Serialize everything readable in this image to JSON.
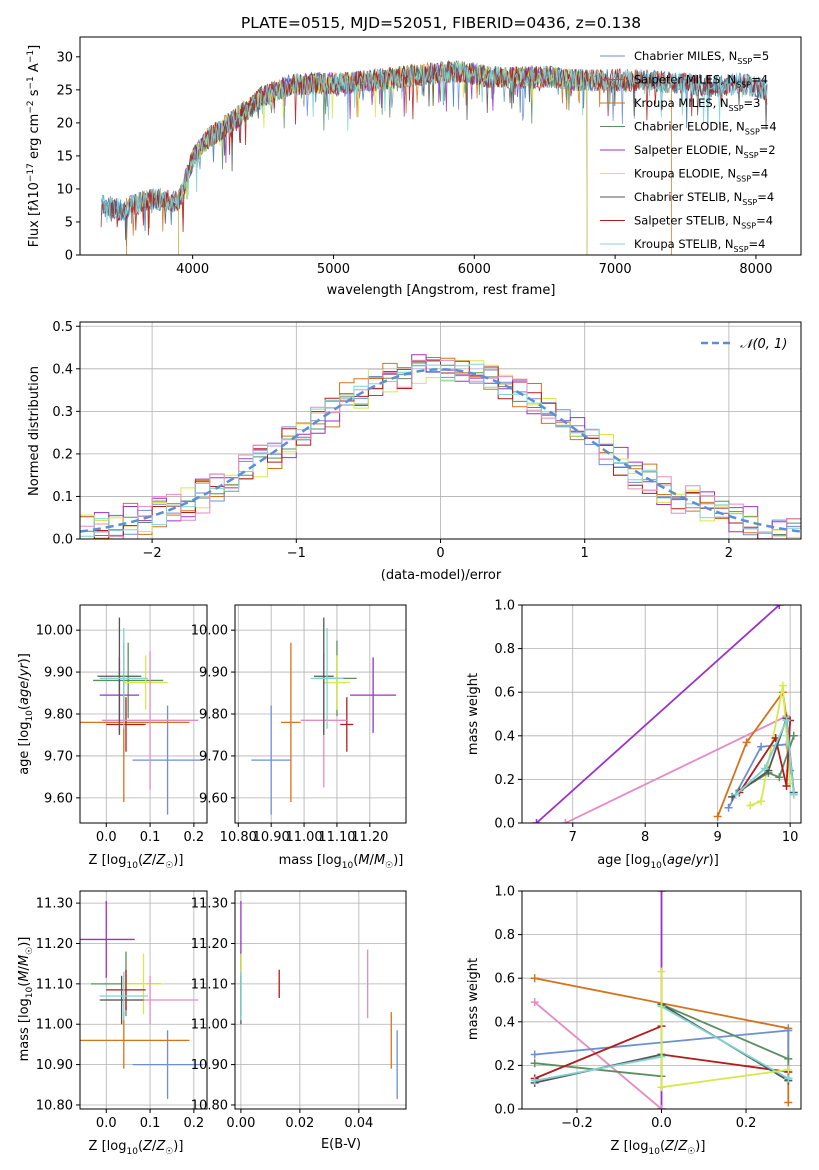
{
  "chart_data": [
    {
      "id": "spectrum",
      "type": "line",
      "title": "PLATE=0515, MJD=52051, FIBERID=0436, z=0.138",
      "xlabel": "wavelength [Angstrom, rest frame]",
      "ylabel": "Flux [f_λ 10⁻¹⁷ erg cm⁻² s⁻¹ A⁻¹]",
      "xlim": [
        3200,
        8320
      ],
      "ylim": [
        0,
        33
      ],
      "xticks": [
        4000,
        5000,
        6000,
        7000,
        8000
      ],
      "yticks": [
        0,
        5,
        10,
        15,
        20,
        25,
        30
      ],
      "legend_position": "top-right",
      "continuum": {
        "x": [
          3350,
          3500,
          3700,
          3900,
          4000,
          4100,
          4300,
          4500,
          4700,
          4900,
          5100,
          5300,
          5500,
          5700,
          5900,
          6100,
          6300,
          6500,
          6700,
          6900,
          7100,
          7300,
          7500,
          7700,
          7900,
          8080
        ],
        "y": [
          7.5,
          6.8,
          8.5,
          8.0,
          14.5,
          17.5,
          20.5,
          24.0,
          25.8,
          26.0,
          26.0,
          26.5,
          27.0,
          27.5,
          27.8,
          27.0,
          26.8,
          27.0,
          26.5,
          26.5,
          26.5,
          26.3,
          26.0,
          25.5,
          26.0,
          25.0
        ]
      },
      "series": [
        {
          "name": "Chabrier MILES, N_SSP=5",
          "color": "#6b8fd6",
          "x_range": [
            3350,
            8080
          ]
        },
        {
          "name": "Salpeter MILES, N_SSP=4",
          "color": "#3a7fb8",
          "x_range": [
            3350,
            8080
          ]
        },
        {
          "name": "Kroupa MILES, N_SSP=3",
          "color": "#d4731c",
          "x_range": [
            3530,
            7400
          ]
        },
        {
          "name": "Chabrier ELODIE, N_SSP=4",
          "color": "#5b8f62",
          "x_range": [
            3900,
            6800
          ]
        },
        {
          "name": "Salpeter ELODIE, N_SSP=2",
          "color": "#9932cc",
          "x_range": [
            3900,
            6800
          ]
        },
        {
          "name": "Kroupa ELODIE, N_SSP=4",
          "color": "#d8e84a",
          "x_range": [
            3900,
            6800
          ]
        },
        {
          "name": "Chabrier STELIB, N_SSP=4",
          "color": "#555555",
          "x_range": [
            3350,
            8080
          ]
        },
        {
          "name": "Salpeter STELIB, N_SSP=4",
          "color": "#b21c1c",
          "x_range": [
            3350,
            8080
          ]
        },
        {
          "name": "Kroupa STELIB, N_SSP=4",
          "color": "#7fd4d4",
          "x_range": [
            3350,
            8080
          ]
        }
      ],
      "legend": [
        {
          "text": "Chabrier MILES, N",
          "sub": "SSP",
          "suffix": "=5",
          "color": "#6b8fd6"
        },
        {
          "text": "Salpeter MILES, N",
          "sub": "SSP",
          "suffix": "=4",
          "color": "#3a7fb8"
        },
        {
          "text": "Kroupa MILES, N",
          "sub": "SSP",
          "suffix": "=3",
          "color": "#d4731c"
        },
        {
          "text": "Chabrier ELODIE, N",
          "sub": "SSP",
          "suffix": "=4",
          "color": "#5b8f62"
        },
        {
          "text": "Salpeter ELODIE, N",
          "sub": "SSP",
          "suffix": "=2",
          "color": "#9932cc"
        },
        {
          "text": "Kroupa ELODIE, N",
          "sub": "SSP",
          "suffix": "=4",
          "color": "#d8e84a"
        },
        {
          "text": "Chabrier STELIB, N",
          "sub": "SSP",
          "suffix": "=4",
          "color": "#555555"
        },
        {
          "text": "Salpeter STELIB, N",
          "sub": "SSP",
          "suffix": "=4",
          "color": "#b21c1c"
        },
        {
          "text": "Kroupa STELIB, N",
          "sub": "SSP",
          "suffix": "=4",
          "color": "#7fd4d4"
        }
      ]
    },
    {
      "id": "residuals",
      "type": "line",
      "xlabel": "(data-model)/error",
      "ylabel": "Normed distribution",
      "xlim": [
        -2.5,
        2.5
      ],
      "ylim": [
        0,
        0.51
      ],
      "xticks": [
        -2,
        -1,
        0,
        1,
        2
      ],
      "yticks": [
        0.0,
        0.1,
        0.2,
        0.3,
        0.4,
        0.5
      ],
      "grid": true,
      "legend_position": "top-right",
      "reference_curve": {
        "name": "𝒩(0, 1)",
        "color": "#5a8fd8",
        "style": "dashed"
      },
      "bin_width": 0.1,
      "series": [
        {
          "color": "#6b8fd6",
          "jitter": 0.035
        },
        {
          "color": "#d4731c",
          "jitter": 0.045
        },
        {
          "color": "#5b8f62",
          "jitter": 0.03
        },
        {
          "color": "#9932cc",
          "jitter": 0.04
        },
        {
          "color": "#d8e84a",
          "jitter": 0.04
        },
        {
          "color": "#b21c1c",
          "jitter": 0.035
        },
        {
          "color": "#e68ac4",
          "jitter": 0.045
        },
        {
          "color": "#7fd4d4",
          "jitter": 0.03
        }
      ]
    },
    {
      "id": "z-age",
      "type": "scatter",
      "xlabel": "Z [log₁₀(Z/Z☉)]",
      "ylabel": "age  [log₁₀(age/yr)]",
      "xlim": [
        -0.06,
        0.23
      ],
      "ylim": [
        9.54,
        10.06
      ],
      "xticks": [
        0.0,
        0.1,
        0.2
      ],
      "yticks": [
        9.6,
        9.7,
        9.8,
        9.9,
        10.0
      ],
      "grid": true,
      "points": [
        {
          "x": 0.14,
          "y": 9.69,
          "xerr": 0.08,
          "yerr": 0.13,
          "color": "#6b8fd6"
        },
        {
          "x": 0.04,
          "y": 9.78,
          "xerr": 0.15,
          "yerr": 0.19,
          "color": "#d4731c"
        },
        {
          "x": 0.05,
          "y": 9.88,
          "xerr": 0.08,
          "yerr": 0.09,
          "color": "#5b8f62"
        },
        {
          "x": 0.03,
          "y": 9.845,
          "xerr": 0.045,
          "yerr": 0.09,
          "color": "#9932cc"
        },
        {
          "x": 0.09,
          "y": 9.875,
          "xerr": 0.05,
          "yerr": 0.065,
          "color": "#d8e84a"
        },
        {
          "x": 0.045,
          "y": 9.775,
          "xerr": 0.045,
          "yerr": 0.065,
          "color": "#b21c1c"
        },
        {
          "x": 0.1,
          "y": 9.785,
          "xerr": 0.11,
          "yerr": 0.165,
          "color": "#e68ac4"
        },
        {
          "x": 0.03,
          "y": 9.89,
          "xerr": 0.05,
          "yerr": 0.14,
          "color": "#555555"
        },
        {
          "x": 0.04,
          "y": 9.885,
          "xerr": 0.055,
          "yerr": 0.12,
          "color": "#7fd4d4"
        }
      ]
    },
    {
      "id": "mass-age",
      "type": "scatter",
      "xlabel": "mass [log₁₀(M/M☉)]",
      "ylabel": "",
      "xlim": [
        10.79,
        11.31
      ],
      "ylim": [
        9.54,
        10.06
      ],
      "xticks": [
        10.8,
        10.9,
        11.0,
        11.1,
        11.2
      ],
      "yticks": [
        9.6,
        9.7,
        9.8,
        9.9,
        10.0
      ],
      "grid": true,
      "points": [
        {
          "x": 10.9,
          "y": 9.69,
          "xerr": 0.06,
          "yerr": 0.13,
          "color": "#6b8fd6"
        },
        {
          "x": 10.96,
          "y": 9.78,
          "xerr": 0.03,
          "yerr": 0.19,
          "color": "#d4731c"
        },
        {
          "x": 11.1,
          "y": 9.885,
          "xerr": 0.06,
          "yerr": 0.09,
          "color": "#5b8f62"
        },
        {
          "x": 11.21,
          "y": 9.845,
          "xerr": 0.07,
          "yerr": 0.09,
          "color": "#9932cc"
        },
        {
          "x": 11.1,
          "y": 9.875,
          "xerr": 0.04,
          "yerr": 0.065,
          "color": "#d8e84a"
        },
        {
          "x": 11.13,
          "y": 9.775,
          "xerr": 0.02,
          "yerr": 0.065,
          "color": "#b21c1c"
        },
        {
          "x": 11.06,
          "y": 9.785,
          "xerr": 0.07,
          "yerr": 0.16,
          "color": "#e68ac4"
        },
        {
          "x": 11.06,
          "y": 9.89,
          "xerr": 0.03,
          "yerr": 0.14,
          "color": "#555555"
        },
        {
          "x": 11.07,
          "y": 9.885,
          "xerr": 0.05,
          "yerr": 0.12,
          "color": "#7fd4d4"
        }
      ]
    },
    {
      "id": "age-weight",
      "type": "line",
      "xlabel": "age  [log₁₀(age/yr)]",
      "ylabel": "mass weight",
      "xlim": [
        6.3,
        10.15
      ],
      "ylim": [
        0,
        1.0
      ],
      "xticks": [
        7,
        8,
        9,
        10
      ],
      "yticks": [
        0.0,
        0.2,
        0.4,
        0.6,
        0.8,
        1.0
      ],
      "grid": true,
      "series": [
        {
          "color": "#9932cc",
          "points": [
            [
              6.5,
              0.0
            ],
            [
              9.85,
              1.0
            ]
          ]
        },
        {
          "color": "#e68ac4",
          "points": [
            [
              6.9,
              0.0
            ],
            [
              9.95,
              0.49
            ]
          ]
        },
        {
          "color": "#d4731c",
          "points": [
            [
              9.0,
              0.03
            ],
            [
              9.4,
              0.37
            ],
            [
              9.9,
              0.6
            ],
            [
              9.95,
              0.48
            ]
          ]
        },
        {
          "color": "#6b8fd6",
          "points": [
            [
              9.15,
              0.07
            ],
            [
              9.6,
              0.35
            ],
            [
              9.95,
              0.36
            ],
            [
              10.0,
              0.24
            ]
          ]
        },
        {
          "color": "#d8e84a",
          "points": [
            [
              9.45,
              0.08
            ],
            [
              9.6,
              0.1
            ],
            [
              9.9,
              0.63
            ],
            [
              10.0,
              0.18
            ]
          ]
        },
        {
          "color": "#5b8f62",
          "points": [
            [
              9.3,
              0.15
            ],
            [
              9.7,
              0.23
            ],
            [
              9.85,
              0.21
            ],
            [
              10.05,
              0.4
            ]
          ]
        },
        {
          "color": "#b21c1c",
          "points": [
            [
              9.3,
              0.14
            ],
            [
              9.8,
              0.39
            ],
            [
              9.95,
              0.17
            ],
            [
              10.0,
              0.47
            ]
          ]
        },
        {
          "color": "#555555",
          "points": [
            [
              9.2,
              0.12
            ],
            [
              9.7,
              0.24
            ],
            [
              9.95,
              0.48
            ],
            [
              10.05,
              0.14
            ]
          ]
        },
        {
          "color": "#7fd4d4",
          "points": [
            [
              9.25,
              0.13
            ],
            [
              9.65,
              0.25
            ],
            [
              9.95,
              0.47
            ],
            [
              10.05,
              0.13
            ]
          ]
        }
      ]
    },
    {
      "id": "z-mass",
      "type": "scatter",
      "xlabel": "Z [log₁₀(Z/Z☉)]",
      "ylabel": "mass [log₁₀(M/M☉)]",
      "xlim": [
        -0.06,
        0.23
      ],
      "ylim": [
        10.79,
        11.33
      ],
      "xticks": [
        0.0,
        0.1,
        0.2
      ],
      "yticks": [
        10.8,
        10.9,
        11.0,
        11.1,
        11.2,
        11.3
      ],
      "grid": true,
      "points": [
        {
          "x": 0.14,
          "y": 10.9,
          "xerr": 0.08,
          "yerr": 0.085,
          "color": "#6b8fd6"
        },
        {
          "x": 0.04,
          "y": 10.96,
          "xerr": 0.15,
          "yerr": 0.07,
          "color": "#d4731c"
        },
        {
          "x": 0.045,
          "y": 11.1,
          "xerr": 0.08,
          "yerr": 0.08,
          "color": "#5b8f62"
        },
        {
          "x": 0.0,
          "y": 11.21,
          "xerr": 0.065,
          "yerr": 0.095,
          "color": "#9932cc"
        },
        {
          "x": 0.085,
          "y": 11.1,
          "xerr": 0.05,
          "yerr": 0.075,
          "color": "#d8e84a"
        },
        {
          "x": 0.045,
          "y": 11.085,
          "xerr": 0.045,
          "yerr": 0.05,
          "color": "#b21c1c"
        },
        {
          "x": 0.1,
          "y": 11.06,
          "xerr": 0.11,
          "yerr": 0.06,
          "color": "#e68ac4"
        },
        {
          "x": 0.035,
          "y": 11.06,
          "xerr": 0.05,
          "yerr": 0.06,
          "color": "#555555"
        },
        {
          "x": 0.04,
          "y": 11.07,
          "xerr": 0.055,
          "yerr": 0.06,
          "color": "#7fd4d4"
        }
      ]
    },
    {
      "id": "ebv-mass",
      "type": "scatter",
      "xlabel": "E(B-V)",
      "ylabel": "",
      "xlim": [
        -0.002,
        0.056
      ],
      "ylim": [
        10.79,
        11.33
      ],
      "xticks": [
        0.0,
        0.02,
        0.04
      ],
      "yticks": [
        10.8,
        10.9,
        11.0,
        11.1,
        11.2,
        11.3
      ],
      "grid": true,
      "points": [
        {
          "x": 0.053,
          "y": 10.9,
          "yerr": 0.085,
          "color": "#6b8fd6"
        },
        {
          "x": 0.051,
          "y": 10.96,
          "yerr": 0.07,
          "color": "#d4731c"
        },
        {
          "x": 0.0,
          "y": 11.1,
          "yerr": 0.08,
          "color": "#5b8f62"
        },
        {
          "x": 0.0,
          "y": 11.21,
          "yerr": 0.095,
          "color": "#9932cc"
        },
        {
          "x": 0.0,
          "y": 11.1,
          "yerr": 0.075,
          "color": "#d8e84a"
        },
        {
          "x": 0.013,
          "y": 11.1,
          "yerr": 0.035,
          "color": "#b21c1c"
        },
        {
          "x": 0.043,
          "y": 11.1,
          "yerr": 0.085,
          "color": "#e68ac4"
        },
        {
          "x": 0.0,
          "y": 11.06,
          "yerr": 0.06,
          "color": "#555555"
        },
        {
          "x": 0.0,
          "y": 11.07,
          "yerr": 0.06,
          "color": "#7fd4d4"
        }
      ]
    },
    {
      "id": "z-weight",
      "type": "line",
      "xlabel": "Z [log₁₀(Z/Z☉)]",
      "ylabel": "mass weight",
      "xlim": [
        -0.33,
        0.33
      ],
      "ylim": [
        0,
        1.0
      ],
      "xticks": [
        -0.2,
        0.0,
        0.2
      ],
      "yticks": [
        0.0,
        0.2,
        0.4,
        0.6,
        0.8,
        1.0
      ],
      "grid": true,
      "series": [
        {
          "color": "#9932cc",
          "points": [
            [
              0.0,
              0.0
            ],
            [
              0.0,
              1.0
            ]
          ]
        },
        {
          "color": "#d4731c",
          "points": [
            [
              -0.3,
              0.6
            ],
            [
              0.3,
              0.37
            ],
            [
              0.3,
              0.03
            ]
          ]
        },
        {
          "color": "#e68ac4",
          "points": [
            [
              -0.3,
              0.49
            ],
            [
              0.0,
              0.0
            ]
          ]
        },
        {
          "color": "#6b8fd6",
          "points": [
            [
              -0.3,
              0.25
            ],
            [
              0.3,
              0.36
            ],
            [
              0.3,
              0.14
            ]
          ]
        },
        {
          "color": "#5b8f62",
          "points": [
            [
              -0.3,
              0.21
            ],
            [
              0.0,
              0.15
            ],
            [
              0.0,
              0.48
            ],
            [
              0.3,
              0.23
            ]
          ]
        },
        {
          "color": "#b21c1c",
          "points": [
            [
              -0.3,
              0.14
            ],
            [
              0.0,
              0.38
            ],
            [
              0.0,
              0.25
            ],
            [
              0.3,
              0.17
            ]
          ]
        },
        {
          "color": "#555555",
          "points": [
            [
              -0.3,
              0.12
            ],
            [
              0.0,
              0.25
            ],
            [
              0.0,
              0.48
            ],
            [
              0.3,
              0.13
            ]
          ]
        },
        {
          "color": "#7fd4d4",
          "points": [
            [
              -0.3,
              0.13
            ],
            [
              0.0,
              0.24
            ],
            [
              0.0,
              0.47
            ],
            [
              0.3,
              0.14
            ]
          ]
        },
        {
          "color": "#d8e84a",
          "points": [
            [
              0.0,
              0.63
            ],
            [
              0.0,
              0.1
            ],
            [
              0.3,
              0.18
            ]
          ]
        }
      ]
    }
  ]
}
